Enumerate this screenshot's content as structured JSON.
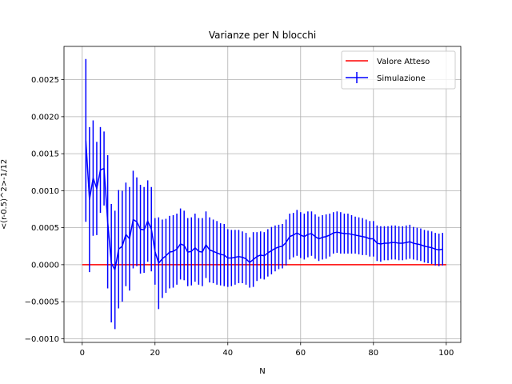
{
  "chart_data": {
    "type": "line",
    "title": "Varianze per N blocchi",
    "xlabel": "N",
    "ylabel": "<(r-0.5)^2>-1/12",
    "xlim": [
      -5,
      104
    ],
    "ylim": [
      -0.00105,
      0.00295
    ],
    "x_ticks": [
      0,
      20,
      40,
      60,
      80,
      100
    ],
    "x_tick_labels": [
      "0",
      "20",
      "40",
      "60",
      "80",
      "100"
    ],
    "y_ticks": [
      -0.001,
      -0.0005,
      0,
      0.0005,
      0.001,
      0.0015,
      0.002,
      0.0025
    ],
    "y_tick_labels": [
      "−0.0010",
      "−0.0005",
      "0.0000",
      "0.0005",
      "0.0010",
      "0.0015",
      "0.0020",
      "0.0025"
    ],
    "grid": true,
    "legend_position": "top-right",
    "legend": [
      "Valore Atteso",
      "Simulazione"
    ],
    "series": [
      {
        "name": "Valore Atteso",
        "color": "#ff0000",
        "x": [
          0,
          100
        ],
        "y": [
          0,
          0
        ]
      },
      {
        "name": "Simulazione",
        "color": "#0000ff",
        "x": [
          1,
          2,
          3,
          4,
          5,
          6,
          7,
          8,
          9,
          10,
          11,
          12,
          13,
          14,
          15,
          16,
          17,
          18,
          19,
          20,
          21,
          22,
          23,
          24,
          25,
          26,
          27,
          28,
          29,
          30,
          31,
          32,
          33,
          34,
          35,
          36,
          37,
          38,
          39,
          40,
          41,
          42,
          43,
          44,
          45,
          46,
          47,
          48,
          49,
          50,
          51,
          52,
          53,
          54,
          55,
          56,
          57,
          58,
          59,
          60,
          61,
          62,
          63,
          64,
          65,
          66,
          67,
          68,
          69,
          70,
          71,
          72,
          73,
          74,
          75,
          76,
          77,
          78,
          79,
          80,
          81,
          82,
          83,
          84,
          85,
          86,
          87,
          88,
          89,
          90,
          91,
          92,
          93,
          94,
          95,
          96,
          97,
          98,
          99
        ],
        "y": [
          0.00168,
          0.00088,
          0.00117,
          0.00103,
          0.00128,
          0.0013,
          0.00058,
          2e-05,
          -7e-05,
          0.00021,
          0.00025,
          0.00041,
          0.00035,
          0.00061,
          0.00058,
          0.00048,
          0.00047,
          0.00059,
          0.00048,
          0.00018,
          2e-05,
          8e-05,
          0.00012,
          0.00017,
          0.00018,
          0.00021,
          0.00028,
          0.00026,
          0.00017,
          0.00018,
          0.00023,
          0.00018,
          0.00017,
          0.00027,
          0.0002,
          0.00018,
          0.00016,
          0.00014,
          0.00013,
          9e-05,
          9e-05,
          0.0001,
          0.00011,
          0.0001,
          8e-05,
          3e-05,
          7e-05,
          0.00011,
          0.00013,
          0.00012,
          0.00016,
          0.00019,
          0.00022,
          0.00024,
          0.00025,
          0.0003,
          0.00038,
          0.0004,
          0.00043,
          0.0004,
          0.00038,
          0.00041,
          0.00042,
          0.00038,
          0.00035,
          0.00037,
          0.00038,
          0.0004,
          0.00043,
          0.00044,
          0.00043,
          0.00042,
          0.00042,
          0.00041,
          0.0004,
          0.00039,
          0.00038,
          0.00037,
          0.00035,
          0.00035,
          0.00029,
          0.00028,
          0.00029,
          0.00029,
          0.0003,
          0.0003,
          0.00029,
          0.00029,
          0.0003,
          0.00031,
          0.00029,
          0.00028,
          0.00027,
          0.00025,
          0.00024,
          0.00023,
          0.00021,
          0.0002,
          0.00021
        ],
        "err": [
          0.0011,
          0.00098,
          0.00078,
          0.00063,
          0.00058,
          0.0005,
          0.0009,
          0.0008,
          0.0008,
          0.0008,
          0.00075,
          0.0007,
          0.0007,
          0.00066,
          0.0006,
          0.0006,
          0.00058,
          0.00055,
          0.00057,
          0.00045,
          0.00062,
          0.00053,
          0.0005,
          0.00049,
          0.00049,
          0.00048,
          0.00048,
          0.00047,
          0.00046,
          0.00046,
          0.00046,
          0.00045,
          0.00046,
          0.00045,
          0.00044,
          0.00043,
          0.00043,
          0.00042,
          0.00042,
          0.00039,
          0.00038,
          0.00037,
          0.00036,
          0.00035,
          0.00035,
          0.00034,
          0.00037,
          0.00033,
          0.00032,
          0.00032,
          0.00032,
          0.00032,
          0.00031,
          0.0003,
          0.0003,
          0.00031,
          0.00031,
          0.0003,
          0.00031,
          0.00031,
          0.00031,
          0.00031,
          0.0003,
          0.0003,
          0.0003,
          0.0003,
          0.0003,
          0.00029,
          0.00028,
          0.00028,
          0.00028,
          0.00027,
          0.00027,
          0.00026,
          0.00025,
          0.00025,
          0.00025,
          0.00024,
          0.00024,
          0.00024,
          0.00024,
          0.00024,
          0.00023,
          0.00023,
          0.00023,
          0.00023,
          0.00023,
          0.00023,
          0.00023,
          0.00023,
          0.00022,
          0.00022,
          0.00022,
          0.00022,
          0.00022,
          0.00022,
          0.00022,
          0.00022,
          0.00022
        ]
      }
    ]
  }
}
